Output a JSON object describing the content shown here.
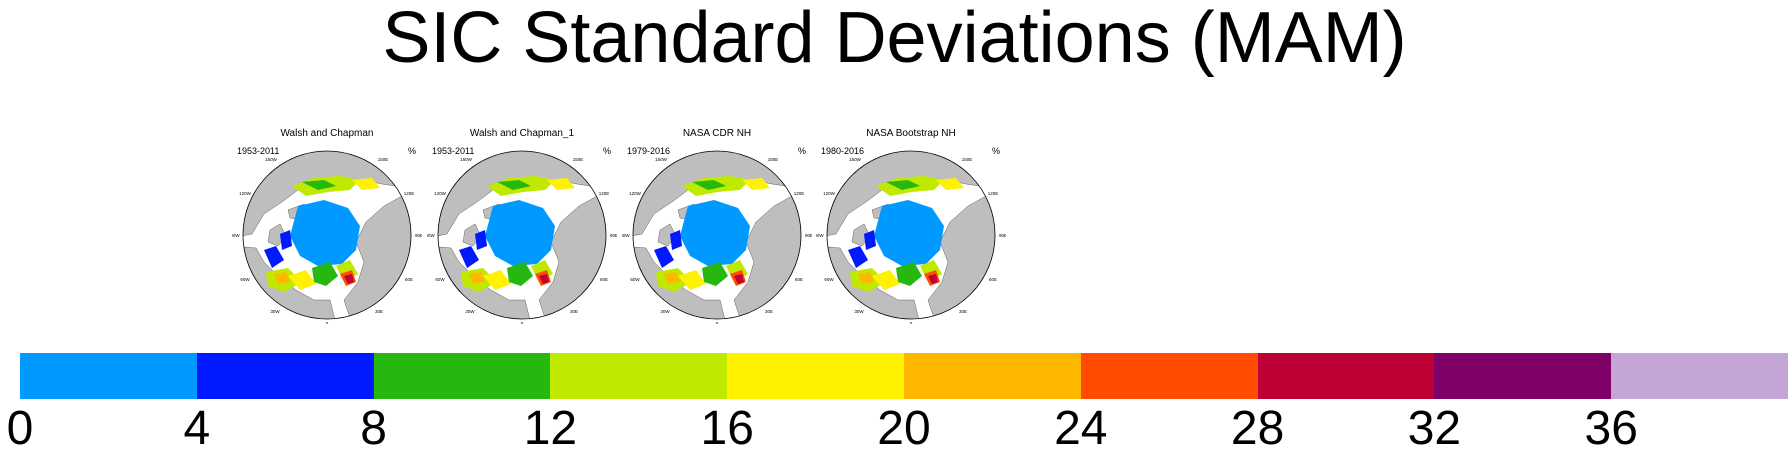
{
  "chart_data": {
    "type": "heatmap",
    "title": "SIC Standard Deviations (MAM)",
    "unit": "%",
    "panels": [
      {
        "title": "Walsh and Chapman",
        "period": "1953-2011"
      },
      {
        "title": "Walsh and Chapman_1",
        "period": "1953-2011"
      },
      {
        "title": "NASA CDR NH",
        "period": "1979-2016"
      },
      {
        "title": "NASA Bootstrap NH",
        "period": "1980-2016"
      }
    ],
    "map_labels": {
      "lon_top": "180",
      "upper_left": "150W",
      "upper_right": "150E",
      "left_high": "120W",
      "right_high": "120E",
      "left": "90W",
      "right": "90E",
      "left_low": "60W",
      "right_low": "60E",
      "lower_left": "30W",
      "lower_right": "30E",
      "lon_bottom": "0"
    },
    "colorbar": {
      "ticks": [
        "0",
        "4",
        "8",
        "12",
        "16",
        "20",
        "24",
        "28",
        "32",
        "36"
      ],
      "colors": [
        "#0099ff",
        "#0019ff",
        "#26b80e",
        "#bfea00",
        "#fff200",
        "#ffb800",
        "#ff4c00",
        "#bf0034",
        "#7f0066",
        "#c4a6d6"
      ]
    }
  }
}
